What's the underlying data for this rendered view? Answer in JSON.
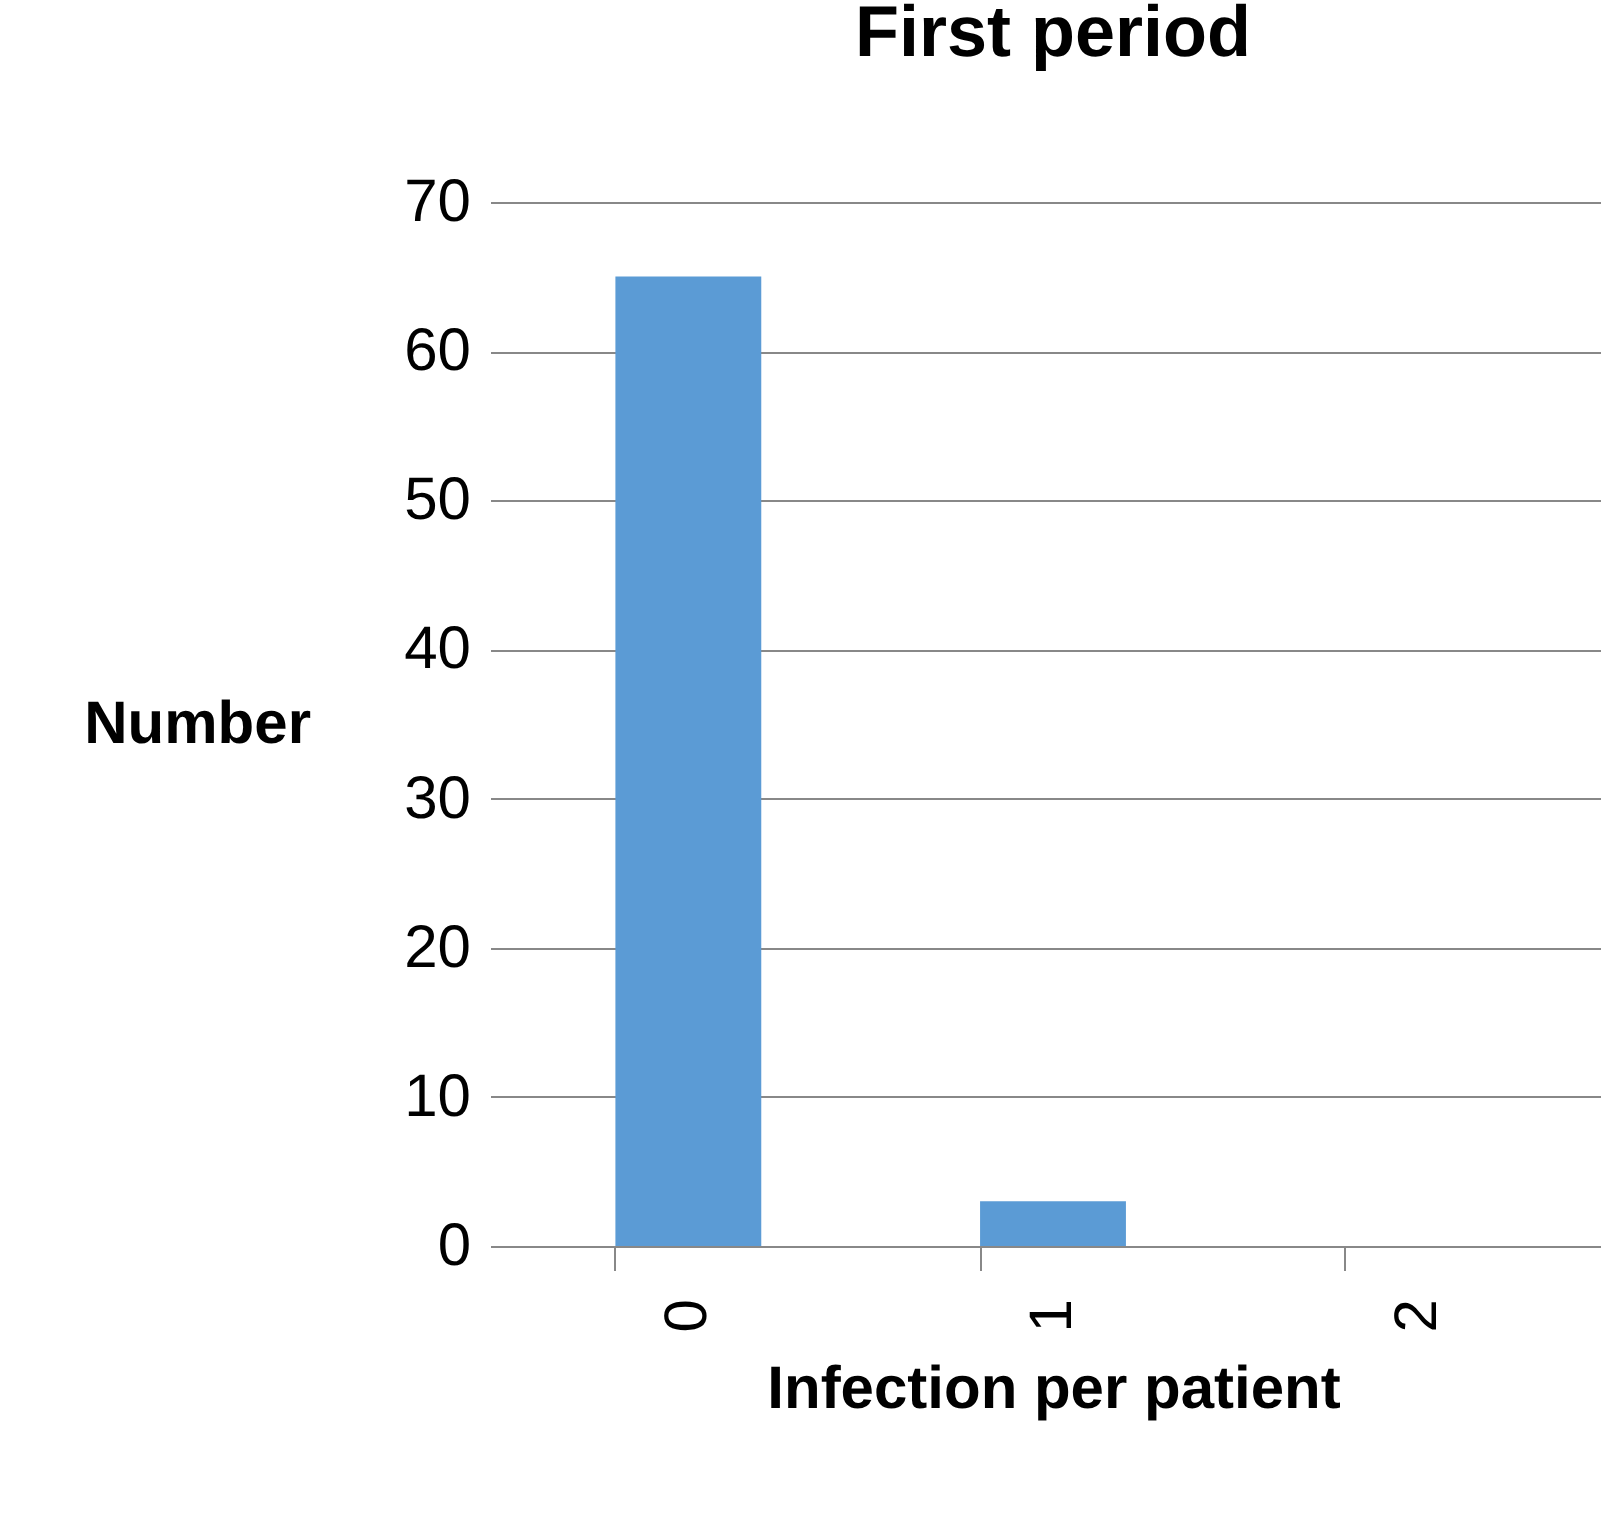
{
  "chart_data": {
    "type": "bar",
    "title": "First period",
    "xlabel": "Infection per patient",
    "ylabel": "Number",
    "categories": [
      "0",
      "1",
      "2"
    ],
    "values": [
      65,
      3,
      0
    ],
    "color": "#5b9bd5",
    "ylim": [
      0,
      70
    ],
    "yticks": [
      0,
      10,
      20,
      30,
      40,
      50,
      60,
      70
    ],
    "grid": "y"
  }
}
